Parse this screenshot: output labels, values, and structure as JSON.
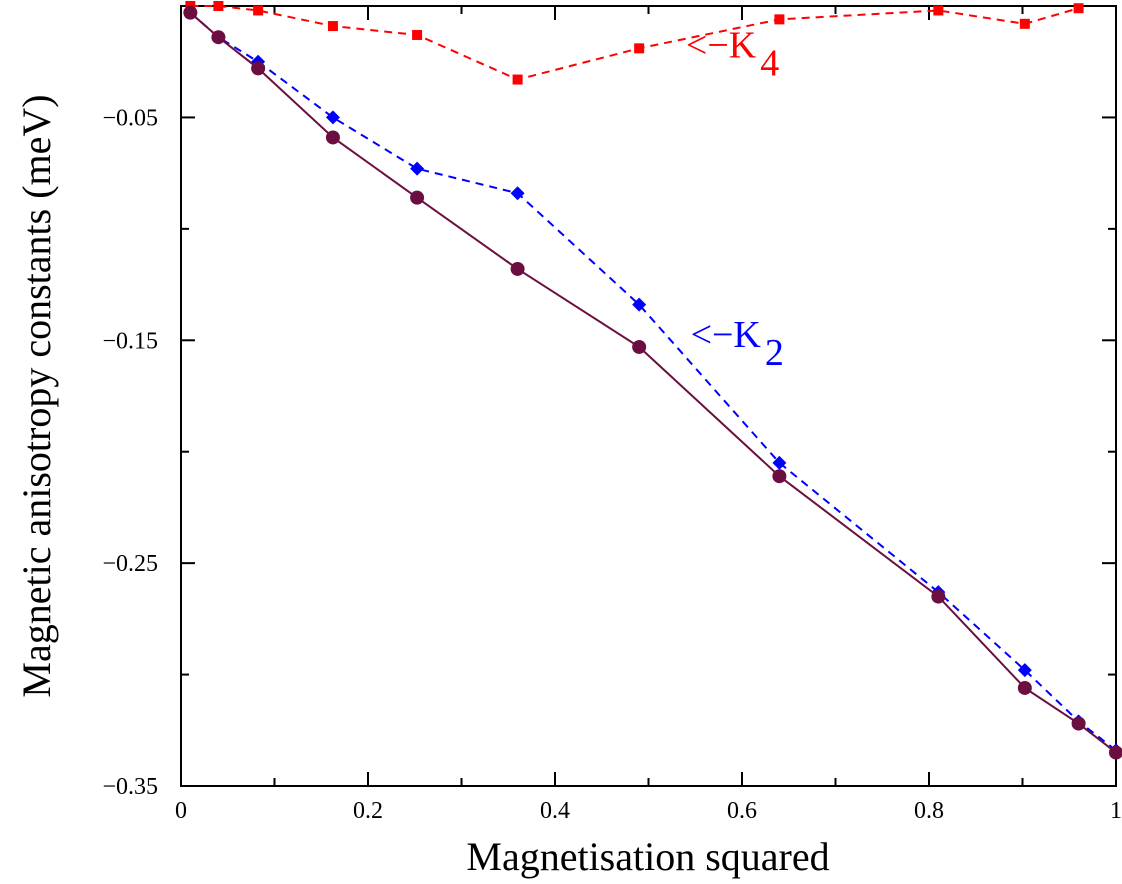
{
  "chart_data": {
    "type": "line",
    "xlabel": "Magnetisation squared",
    "ylabel": "Magnetic anisotropy constants (meV)",
    "xlim": [
      0,
      1
    ],
    "ylim": [
      -0.35,
      0
    ],
    "xticks": [
      0,
      0.2,
      0.4,
      0.6,
      0.8,
      1
    ],
    "xtick_labels": [
      "0",
      "0.2",
      "0.4",
      "0.6",
      "0.8",
      "1"
    ],
    "yticks": [
      -0.05,
      -0.15,
      -0.25,
      -0.35
    ],
    "ytick_labels": [
      "−0.05",
      "−0.15",
      "−0.25",
      "−0.35"
    ],
    "grid": false,
    "series": [
      {
        "name": "-K4",
        "color": "#ff0000",
        "line_style": "dashed",
        "marker": "square",
        "x": [
          0.01,
          0.04,
          0.0825,
          0.1625,
          0.2525,
          0.36,
          0.49,
          0.64,
          0.81,
          0.9025,
          0.96
        ],
        "y": [
          0.0,
          0.0,
          -0.002,
          -0.009,
          -0.013,
          -0.033,
          -0.019,
          -0.006,
          -0.002,
          -0.008,
          -0.001
        ]
      },
      {
        "name": "-K2",
        "color": "#0000ff",
        "line_style": "dashed",
        "marker": "diamond",
        "x": [
          0.01,
          0.04,
          0.0825,
          0.1625,
          0.2525,
          0.36,
          0.49,
          0.64,
          0.81,
          0.9025,
          0.96,
          1.0
        ],
        "y": [
          -0.003,
          -0.014,
          -0.025,
          -0.05,
          -0.073,
          -0.084,
          -0.134,
          -0.205,
          -0.263,
          -0.298,
          -0.321,
          -0.334
        ]
      },
      {
        "name": "",
        "color": "#6b0f40",
        "line_style": "solid",
        "marker": "circle",
        "x": [
          0.01,
          0.04,
          0.0825,
          0.1625,
          0.2525,
          0.36,
          0.49,
          0.64,
          0.81,
          0.9025,
          0.96,
          1.0
        ],
        "y": [
          -0.003,
          -0.014,
          -0.028,
          -0.059,
          -0.086,
          -0.118,
          -0.153,
          -0.211,
          -0.265,
          -0.306,
          -0.322,
          -0.335
        ]
      }
    ],
    "annotations": [
      {
        "text_prefix": "<−K",
        "subscript": "4",
        "color": "#ff0000",
        "anchor_x": 0.54,
        "anchor_y": -0.023
      },
      {
        "text_prefix": "<−K",
        "subscript": "2",
        "color": "#0000ff",
        "anchor_x": 0.545,
        "anchor_y": -0.153
      }
    ]
  }
}
